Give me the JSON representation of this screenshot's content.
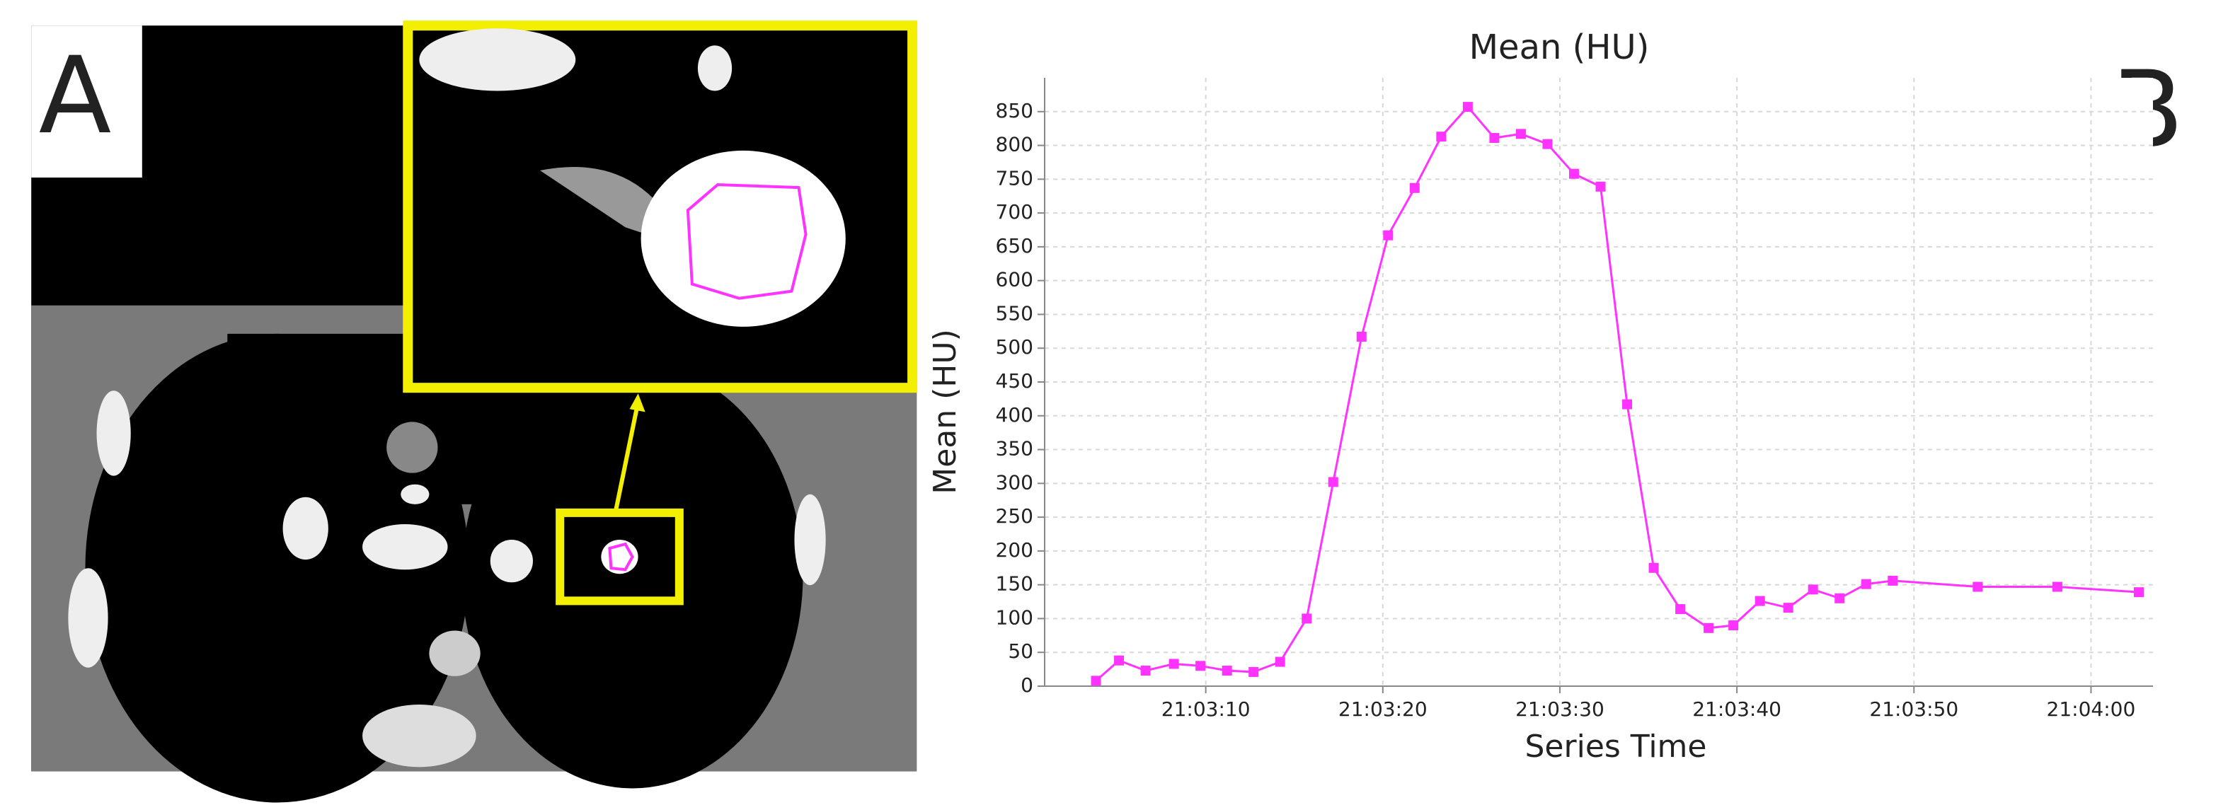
{
  "panel_labels": {
    "a": "A",
    "b": "B"
  },
  "chart_data": {
    "type": "line",
    "title": "Mean (HU)",
    "x_label": "Series Time",
    "y_label": "Mean (HU)",
    "color": "#ff33ff",
    "grid": true,
    "marker": "square",
    "x": [
      "21:03:03.8",
      "21:03:05.1",
      "21:03:06.6",
      "21:03:08.2",
      "21:03:09.7",
      "21:03:11.2",
      "21:03:12.7",
      "21:03:14.2",
      "21:03:15.7",
      "21:03:17.2",
      "21:03:18.8",
      "21:03:20.3",
      "21:03:21.8",
      "21:03:23.3",
      "21:03:24.8",
      "21:03:26.3",
      "21:03:27.8",
      "21:03:29.3",
      "21:03:30.8",
      "21:03:32.3",
      "21:03:33.8",
      "21:03:35.3",
      "21:03:36.8",
      "21:03:38.4",
      "21:03:39.8",
      "21:03:41.3",
      "21:03:42.9",
      "21:03:44.3",
      "21:03:45.8",
      "21:03:47.3",
      "21:03:48.8",
      "21:03:53.6",
      "21:03:58.1",
      "21:04:02.7"
    ],
    "values": [
      8,
      38,
      23,
      33,
      30,
      23,
      21,
      36,
      100,
      302,
      517,
      667,
      737,
      813,
      857,
      811,
      817,
      802,
      758,
      739,
      417,
      175,
      114,
      86,
      90,
      126,
      116,
      143,
      130,
      151,
      156,
      147,
      147,
      139
    ],
    "xlim": [
      "21:03:00.9",
      "21:04:03.5"
    ],
    "xticks": [
      "21:03:10",
      "21:03:20",
      "21:03:30",
      "21:03:40",
      "21:03:50",
      "21:04:00"
    ],
    "ylim": [
      0,
      900
    ],
    "yticks": [
      0,
      50,
      100,
      150,
      200,
      250,
      300,
      350,
      400,
      450,
      500,
      550,
      600,
      650,
      700,
      750,
      800,
      850
    ]
  }
}
